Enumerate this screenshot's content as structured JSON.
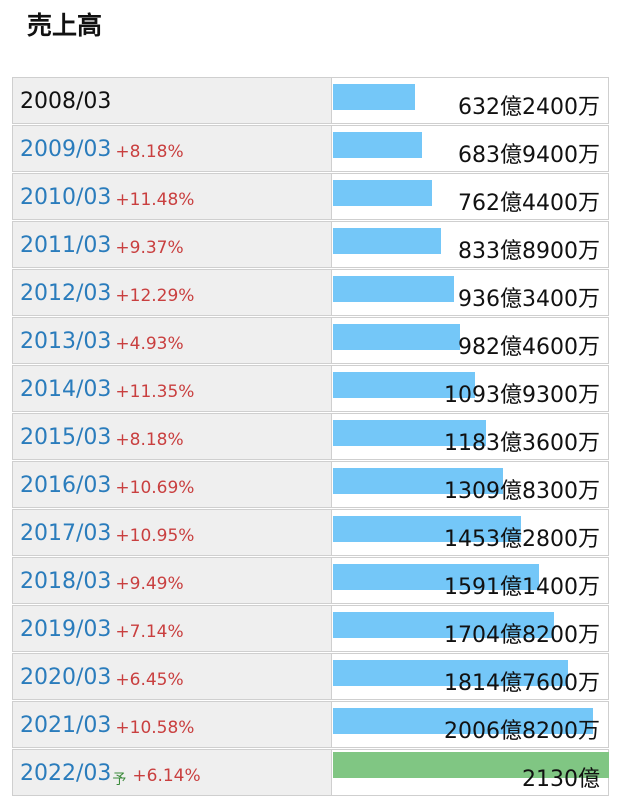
{
  "title": "売上高",
  "chart_data": {
    "type": "bar",
    "categories": [
      "2008/03",
      "2009/03",
      "2010/03",
      "2011/03",
      "2012/03",
      "2013/03",
      "2014/03",
      "2015/03",
      "2016/03",
      "2017/03",
      "2018/03",
      "2019/03",
      "2020/03",
      "2021/03",
      "2022/03"
    ],
    "changes": [
      null,
      "+8.18%",
      "+11.48%",
      "+9.37%",
      "+12.29%",
      "+4.93%",
      "+11.35%",
      "+8.18%",
      "+10.69%",
      "+10.95%",
      "+9.49%",
      "+7.14%",
      "+6.45%",
      "+10.58%",
      "+6.14%"
    ],
    "forecast_marks": [
      null,
      null,
      null,
      null,
      null,
      null,
      null,
      null,
      null,
      null,
      null,
      null,
      null,
      null,
      "予"
    ],
    "values": [
      632.24,
      683.94,
      762.44,
      833.89,
      936.34,
      982.46,
      1093.93,
      1183.36,
      1309.83,
      1453.28,
      1591.14,
      1704.82,
      1814.76,
      2006.82,
      2130
    ],
    "value_labels": [
      "632億2400万",
      "683億9400万",
      "762億4400万",
      "833億8900万",
      "936億3400万",
      "982億4600万",
      "1093億9300万",
      "1183億3600万",
      "1309億8300万",
      "1453億2800万",
      "1591億1400万",
      "1704億8200万",
      "1814億7600万",
      "2006億8200万",
      "2130億"
    ],
    "colors": [
      "#74c7f8",
      "#74c7f8",
      "#74c7f8",
      "#74c7f8",
      "#74c7f8",
      "#74c7f8",
      "#74c7f8",
      "#74c7f8",
      "#74c7f8",
      "#74c7f8",
      "#74c7f8",
      "#74c7f8",
      "#74c7f8",
      "#74c7f8",
      "#80c683"
    ]
  }
}
